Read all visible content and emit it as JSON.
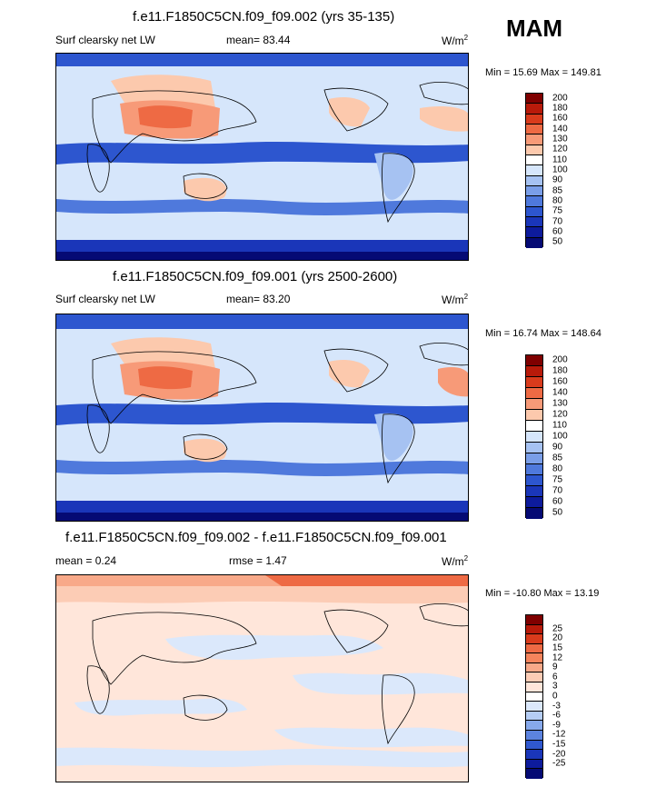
{
  "season": "MAM",
  "panels": [
    {
      "title": "f.e11.F1850C5CN.f09_f09.002 (yrs 35-135)",
      "left_label": "Surf clearsky net LW",
      "center_label": "mean=  83.44",
      "units": "W/m",
      "units_sup": "2",
      "minmax": "Min =  15.69 Max = 149.81",
      "colorbar": {
        "colors": [
          "#7f0000",
          "#b81a0a",
          "#d93b1c",
          "#ee6a44",
          "#f79a78",
          "#fcc9ad",
          "#ffffff",
          "#d6e6fb",
          "#a6c2f2",
          "#7a9ee8",
          "#4f79dc",
          "#2d56cf",
          "#1a36b9",
          "#0d1b9c",
          "#050a74"
        ],
        "labels": [
          "200",
          "180",
          "160",
          "140",
          "130",
          "120",
          "110",
          "100",
          "90",
          "85",
          "80",
          "75",
          "70",
          "60",
          "50"
        ]
      }
    },
    {
      "title": "f.e11.F1850C5CN.f09_f09.001 (yrs 2500-2600)",
      "left_label": "Surf clearsky net LW",
      "center_label": "mean=  83.20",
      "units": "W/m",
      "units_sup": "2",
      "minmax": "Min =  16.74 Max = 148.64",
      "colorbar": {
        "colors": [
          "#7f0000",
          "#b81a0a",
          "#d93b1c",
          "#ee6a44",
          "#f79a78",
          "#fcc9ad",
          "#ffffff",
          "#d6e6fb",
          "#a6c2f2",
          "#7a9ee8",
          "#4f79dc",
          "#2d56cf",
          "#1a36b9",
          "#0d1b9c",
          "#050a74"
        ],
        "labels": [
          "200",
          "180",
          "160",
          "140",
          "130",
          "120",
          "110",
          "100",
          "90",
          "85",
          "80",
          "75",
          "70",
          "60",
          "50"
        ]
      }
    },
    {
      "title": "f.e11.F1850C5CN.f09_f09.002 - f.e11.F1850C5CN.f09_f09.001",
      "left_label": "mean =   0.24",
      "center_label": "rmse =   1.47",
      "units": "W/m",
      "units_sup": "2",
      "minmax": "Min = -10.80 Max =  13.19",
      "colorbar": {
        "colors": [
          "#7f0000",
          "#b81a0a",
          "#d93b1c",
          "#ee6a44",
          "#f5845c",
          "#f8a989",
          "#fcccb5",
          "#ffe6da",
          "#ffffff",
          "#dbe8fb",
          "#b5cdf5",
          "#87a9eb",
          "#5c83df",
          "#3058cf",
          "#1a36b9",
          "#0d1b9c",
          "#050a74"
        ],
        "labels": [
          "25",
          "20",
          "15",
          "12",
          "9",
          "6",
          "3",
          "0",
          "-3",
          "-6",
          "-9",
          "-12",
          "-15",
          "-20",
          "-25"
        ]
      }
    }
  ]
}
